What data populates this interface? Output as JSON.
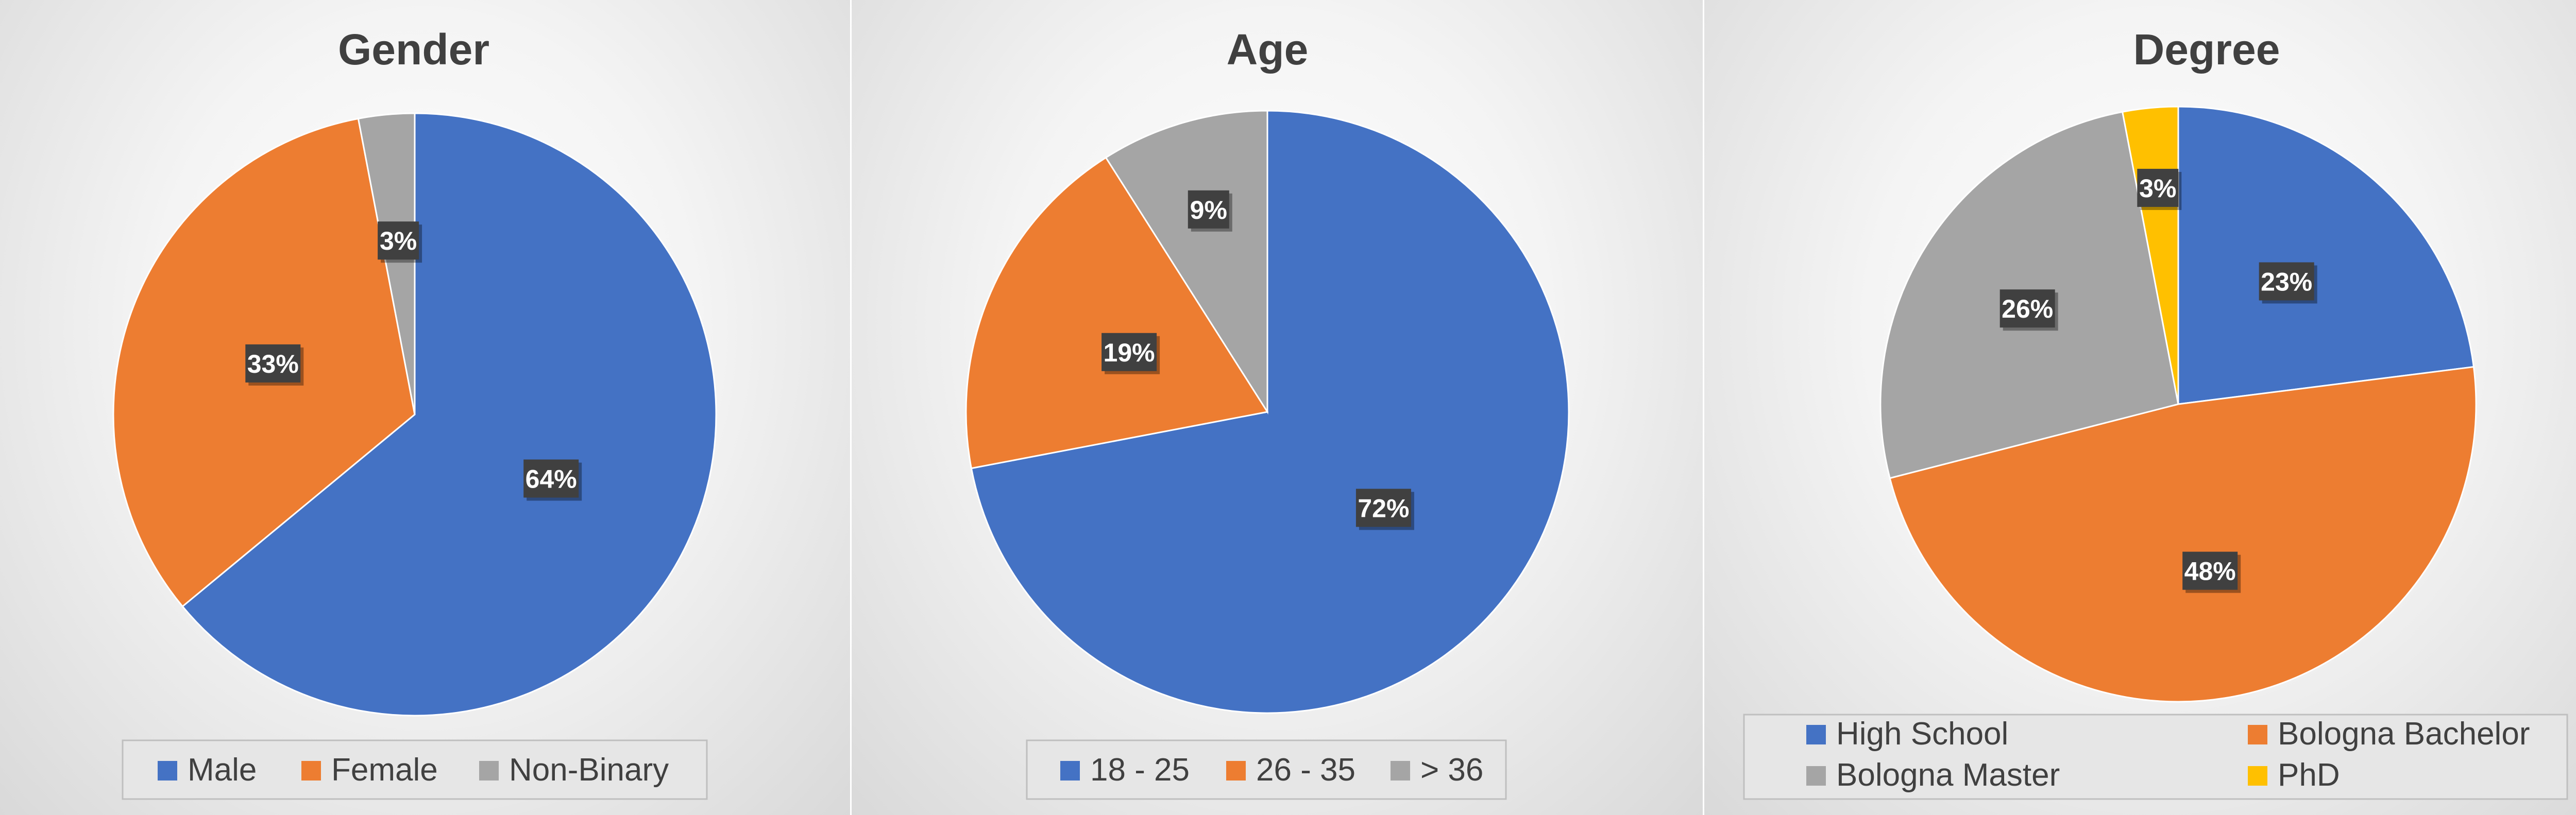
{
  "chart_data": [
    {
      "type": "pie",
      "title": "Gender",
      "categories": [
        "Male",
        "Female",
        "Non-Binary"
      ],
      "values": [
        64,
        33,
        3
      ],
      "data_labels": [
        "64%",
        "33%",
        "3%"
      ],
      "colors": [
        "#4472C4",
        "#ED7D31",
        "#A5A5A5"
      ],
      "legend": "bottom"
    },
    {
      "type": "pie",
      "title": "Age",
      "categories": [
        "18 - 25",
        "26 - 35",
        "> 36"
      ],
      "values": [
        72,
        19,
        9
      ],
      "data_labels": [
        "72%",
        "19%",
        "9%"
      ],
      "colors": [
        "#4472C4",
        "#ED7D31",
        "#A5A5A5"
      ],
      "legend": "bottom"
    },
    {
      "type": "pie",
      "title": "Degree",
      "categories": [
        "High School",
        "Bologna Bachelor",
        "Bologna Master",
        "PhD"
      ],
      "values": [
        23,
        48,
        26,
        3
      ],
      "data_labels": [
        "23%",
        "48%",
        "26%",
        "3%"
      ],
      "colors": [
        "#4472C4",
        "#ED7D31",
        "#A5A5A5",
        "#FFC000"
      ],
      "legend": "bottom"
    }
  ]
}
